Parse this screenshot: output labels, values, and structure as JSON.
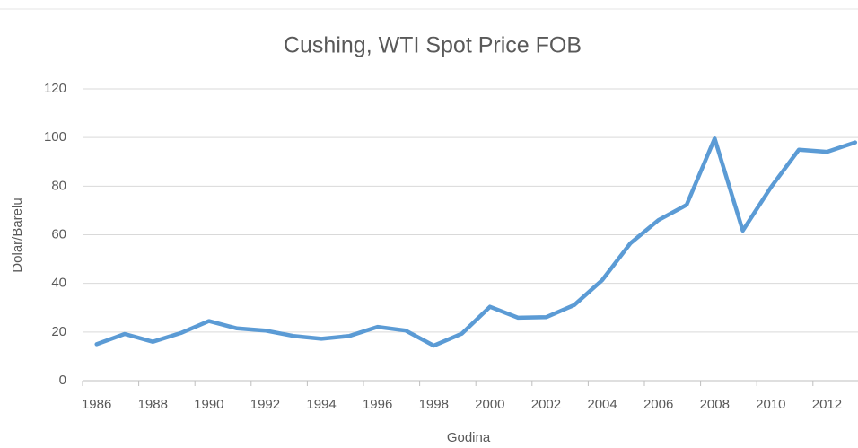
{
  "chart_data": {
    "type": "line",
    "title": "Cushing, WTI Spot Price FOB",
    "x_label": "Godina",
    "y_label": "Dolar/Barelu",
    "categories": [
      "1986",
      null,
      "1988",
      null,
      "1990",
      null,
      "1992",
      null,
      "1994",
      null,
      "1996",
      null,
      "1998",
      null,
      "2000",
      null,
      "2002",
      null,
      "2004",
      null,
      "2006",
      null,
      "2008",
      null,
      "2010",
      null,
      "2012",
      null
    ],
    "series": [
      {
        "name": "Cushing, WTI Spot Price FOB",
        "color": "#5b9bd5",
        "values": [
          15.0,
          19.2,
          16.0,
          19.6,
          24.5,
          21.5,
          20.6,
          18.4,
          17.2,
          18.4,
          22.1,
          20.6,
          14.4,
          19.3,
          30.4,
          25.9,
          26.1,
          31.1,
          41.4,
          56.5,
          66.0,
          72.3,
          99.6,
          61.7,
          79.5,
          95.0,
          94.1,
          98.0
        ]
      }
    ],
    "ylim": [
      0,
      120
    ],
    "yticks": [
      0,
      20,
      40,
      60,
      80,
      100,
      120
    ],
    "grid": true
  }
}
